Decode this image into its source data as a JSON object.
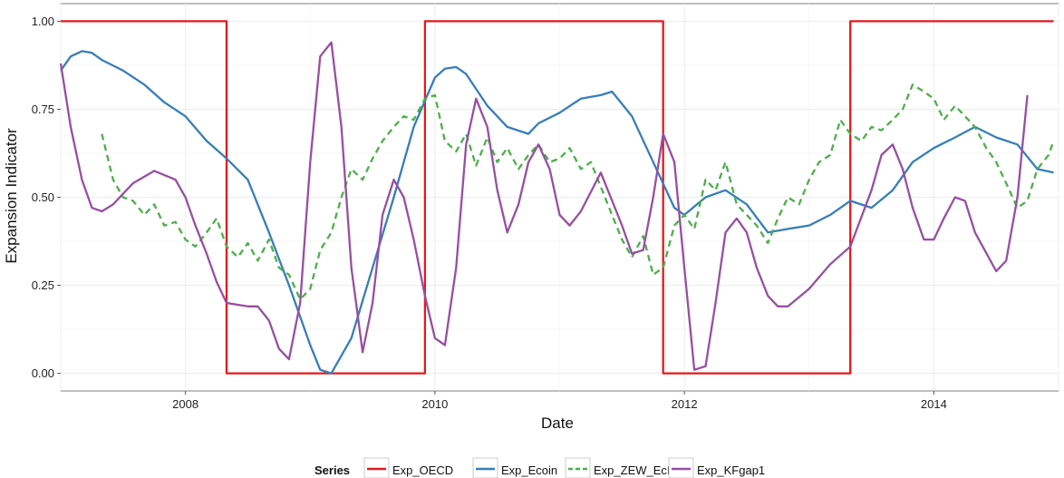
{
  "chart_data": {
    "type": "line",
    "xlabel": "Date",
    "ylabel": "Expansion Indicator",
    "xlim": [
      2007.0,
      2015.0
    ],
    "ylim": [
      -0.05,
      1.05
    ],
    "x_ticks": [
      2008,
      2010,
      2012,
      2014
    ],
    "x_tick_labels": [
      "2008",
      "2010",
      "2012",
      "2014"
    ],
    "y_ticks": [
      0.0,
      0.25,
      0.5,
      0.75,
      1.0
    ],
    "y_tick_labels": [
      "0.00",
      "0.25",
      "0.50",
      "0.75",
      "1.00"
    ],
    "grid": true,
    "legend_title": "Series",
    "legend_position": "bottom",
    "series": [
      {
        "name": "Exp_OECD",
        "color": "#e41a1c",
        "style": "solid",
        "x": [
          2007.0,
          2008.33,
          2008.33,
          2009.92,
          2009.92,
          2011.83,
          2011.83,
          2013.33,
          2013.33,
          2014.96
        ],
        "y": [
          1.0,
          1.0,
          0.0,
          0.0,
          1.0,
          1.0,
          0.0,
          0.0,
          1.0,
          1.0
        ]
      },
      {
        "name": "Exp_Ecoin",
        "color": "#377eb8",
        "style": "solid",
        "x": [
          2007.0,
          2007.08,
          2007.17,
          2007.25,
          2007.33,
          2007.5,
          2007.67,
          2007.83,
          2008.0,
          2008.17,
          2008.33,
          2008.5,
          2008.67,
          2008.83,
          2009.0,
          2009.08,
          2009.17,
          2009.33,
          2009.5,
          2009.67,
          2009.83,
          2010.0,
          2010.08,
          2010.17,
          2010.25,
          2010.42,
          2010.58,
          2010.75,
          2010.83,
          2011.0,
          2011.17,
          2011.33,
          2011.42,
          2011.58,
          2011.75,
          2011.92,
          2012.0,
          2012.17,
          2012.33,
          2012.5,
          2012.67,
          2012.83,
          2013.0,
          2013.17,
          2013.33,
          2013.5,
          2013.67,
          2013.83,
          2014.0,
          2014.17,
          2014.33,
          2014.5,
          2014.67,
          2014.83,
          2014.96
        ],
        "y": [
          0.86,
          0.9,
          0.915,
          0.91,
          0.89,
          0.86,
          0.82,
          0.77,
          0.73,
          0.66,
          0.61,
          0.55,
          0.4,
          0.25,
          0.08,
          0.01,
          0.0,
          0.1,
          0.3,
          0.5,
          0.7,
          0.84,
          0.865,
          0.87,
          0.85,
          0.76,
          0.7,
          0.68,
          0.71,
          0.74,
          0.78,
          0.79,
          0.8,
          0.73,
          0.6,
          0.47,
          0.45,
          0.5,
          0.52,
          0.48,
          0.4,
          0.41,
          0.42,
          0.45,
          0.49,
          0.47,
          0.52,
          0.6,
          0.64,
          0.67,
          0.7,
          0.67,
          0.65,
          0.58,
          0.57
        ]
      },
      {
        "name": "Exp_ZEW_EcE",
        "color": "#4daf4a",
        "style": "dashed",
        "x": [
          2007.33,
          2007.42,
          2007.5,
          2007.58,
          2007.67,
          2007.75,
          2007.83,
          2007.92,
          2008.0,
          2008.08,
          2008.17,
          2008.25,
          2008.33,
          2008.42,
          2008.5,
          2008.58,
          2008.67,
          2008.75,
          2008.83,
          2008.92,
          2009.0,
          2009.08,
          2009.17,
          2009.25,
          2009.33,
          2009.42,
          2009.5,
          2009.58,
          2009.67,
          2009.75,
          2009.83,
          2009.92,
          2010.0,
          2010.08,
          2010.17,
          2010.25,
          2010.33,
          2010.42,
          2010.5,
          2010.58,
          2010.67,
          2010.75,
          2010.83,
          2010.92,
          2011.0,
          2011.08,
          2011.17,
          2011.25,
          2011.33,
          2011.42,
          2011.5,
          2011.58,
          2011.67,
          2011.75,
          2011.83,
          2011.92,
          2012.0,
          2012.08,
          2012.17,
          2012.25,
          2012.33,
          2012.42,
          2012.5,
          2012.58,
          2012.67,
          2012.75,
          2012.83,
          2012.92,
          2013.0,
          2013.08,
          2013.17,
          2013.25,
          2013.33,
          2013.42,
          2013.5,
          2013.58,
          2013.67,
          2013.75,
          2013.83,
          2013.92,
          2014.0,
          2014.08,
          2014.17,
          2014.25,
          2014.33,
          2014.42,
          2014.5,
          2014.58,
          2014.67,
          2014.75,
          2014.83,
          2014.92,
          2014.96
        ],
        "y": [
          0.68,
          0.55,
          0.5,
          0.49,
          0.45,
          0.48,
          0.42,
          0.43,
          0.38,
          0.36,
          0.4,
          0.44,
          0.36,
          0.33,
          0.37,
          0.32,
          0.38,
          0.3,
          0.28,
          0.21,
          0.24,
          0.35,
          0.4,
          0.5,
          0.58,
          0.55,
          0.61,
          0.66,
          0.7,
          0.73,
          0.72,
          0.78,
          0.79,
          0.66,
          0.63,
          0.68,
          0.59,
          0.67,
          0.6,
          0.64,
          0.58,
          0.62,
          0.65,
          0.6,
          0.61,
          0.64,
          0.58,
          0.6,
          0.53,
          0.45,
          0.38,
          0.33,
          0.39,
          0.28,
          0.3,
          0.42,
          0.45,
          0.41,
          0.55,
          0.52,
          0.6,
          0.48,
          0.45,
          0.42,
          0.37,
          0.44,
          0.5,
          0.48,
          0.55,
          0.6,
          0.62,
          0.72,
          0.68,
          0.66,
          0.7,
          0.69,
          0.72,
          0.75,
          0.82,
          0.8,
          0.78,
          0.72,
          0.76,
          0.73,
          0.7,
          0.64,
          0.6,
          0.54,
          0.47,
          0.49,
          0.58,
          0.62,
          0.66
        ]
      },
      {
        "name": "Exp_KFgap1",
        "color": "#984ea3",
        "style": "solid",
        "x": [
          2007.0,
          2007.08,
          2007.17,
          2007.25,
          2007.33,
          2007.42,
          2007.58,
          2007.75,
          2007.92,
          2008.0,
          2008.08,
          2008.17,
          2008.25,
          2008.33,
          2008.5,
          2008.58,
          2008.67,
          2008.75,
          2008.83,
          2008.92,
          2009.0,
          2009.08,
          2009.17,
          2009.25,
          2009.33,
          2009.42,
          2009.5,
          2009.58,
          2009.67,
          2009.75,
          2009.83,
          2009.92,
          2010.0,
          2010.08,
          2010.17,
          2010.25,
          2010.33,
          2010.42,
          2010.5,
          2010.58,
          2010.67,
          2010.75,
          2010.83,
          2010.92,
          2011.0,
          2011.08,
          2011.17,
          2011.33,
          2011.5,
          2011.58,
          2011.67,
          2011.75,
          2011.83,
          2011.92,
          2012.0,
          2012.08,
          2012.17,
          2012.25,
          2012.33,
          2012.42,
          2012.5,
          2012.58,
          2012.67,
          2012.75,
          2012.83,
          2013.0,
          2013.17,
          2013.33,
          2013.5,
          2013.58,
          2013.67,
          2013.75,
          2013.83,
          2013.92,
          2014.0,
          2014.08,
          2014.17,
          2014.25,
          2014.33,
          2014.5,
          2014.58,
          2014.67,
          2014.75
        ],
        "y": [
          0.88,
          0.7,
          0.55,
          0.47,
          0.46,
          0.48,
          0.54,
          0.575,
          0.55,
          0.5,
          0.42,
          0.34,
          0.26,
          0.2,
          0.19,
          0.19,
          0.15,
          0.07,
          0.04,
          0.2,
          0.6,
          0.9,
          0.94,
          0.7,
          0.3,
          0.06,
          0.2,
          0.45,
          0.55,
          0.5,
          0.38,
          0.22,
          0.1,
          0.08,
          0.3,
          0.65,
          0.78,
          0.7,
          0.52,
          0.4,
          0.48,
          0.6,
          0.65,
          0.58,
          0.45,
          0.42,
          0.46,
          0.57,
          0.42,
          0.34,
          0.35,
          0.5,
          0.68,
          0.6,
          0.3,
          0.01,
          0.02,
          0.2,
          0.4,
          0.44,
          0.4,
          0.3,
          0.22,
          0.19,
          0.19,
          0.24,
          0.31,
          0.36,
          0.52,
          0.62,
          0.65,
          0.58,
          0.47,
          0.38,
          0.38,
          0.44,
          0.5,
          0.49,
          0.4,
          0.29,
          0.32,
          0.5,
          0.79
        ]
      }
    ]
  }
}
